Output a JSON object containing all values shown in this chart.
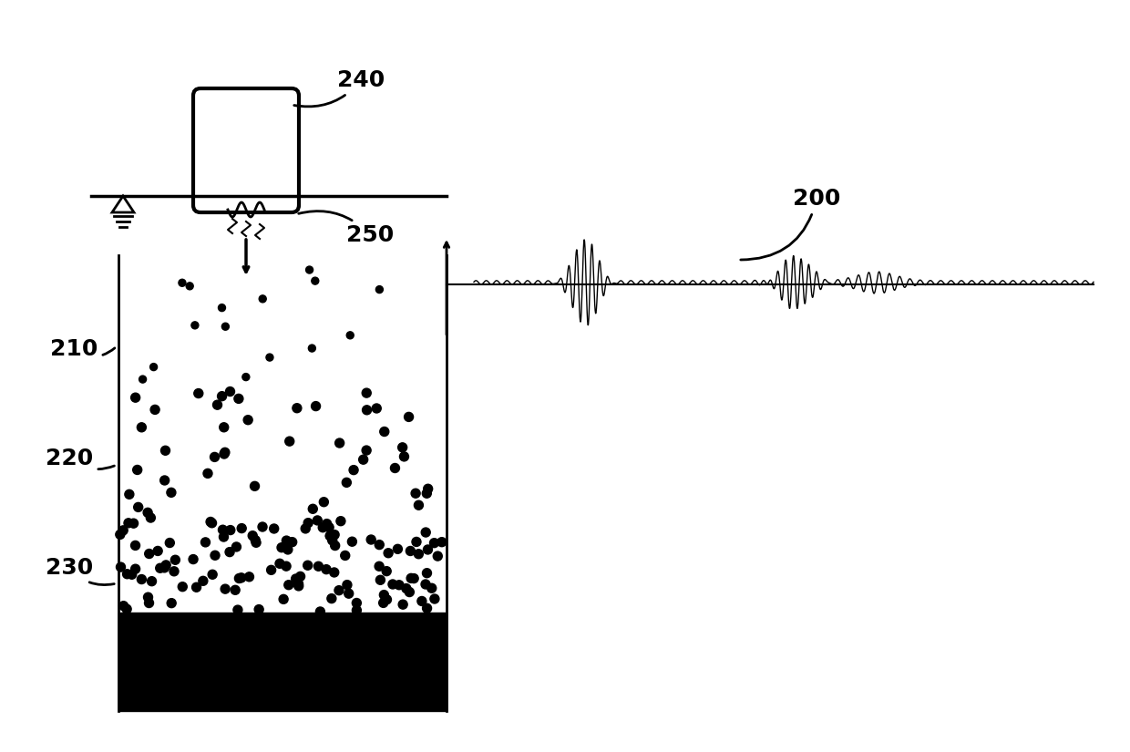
{
  "bg_color": "#ffffff",
  "label_240": "240",
  "label_250": "250",
  "label_200": "200",
  "label_210": "210",
  "label_220": "220",
  "label_230": "230",
  "font_size_labels": 18,
  "waveform_color": "#000000",
  "box_color": "#000000",
  "dot_color": "#000000",
  "bedrock_color": "#000000"
}
